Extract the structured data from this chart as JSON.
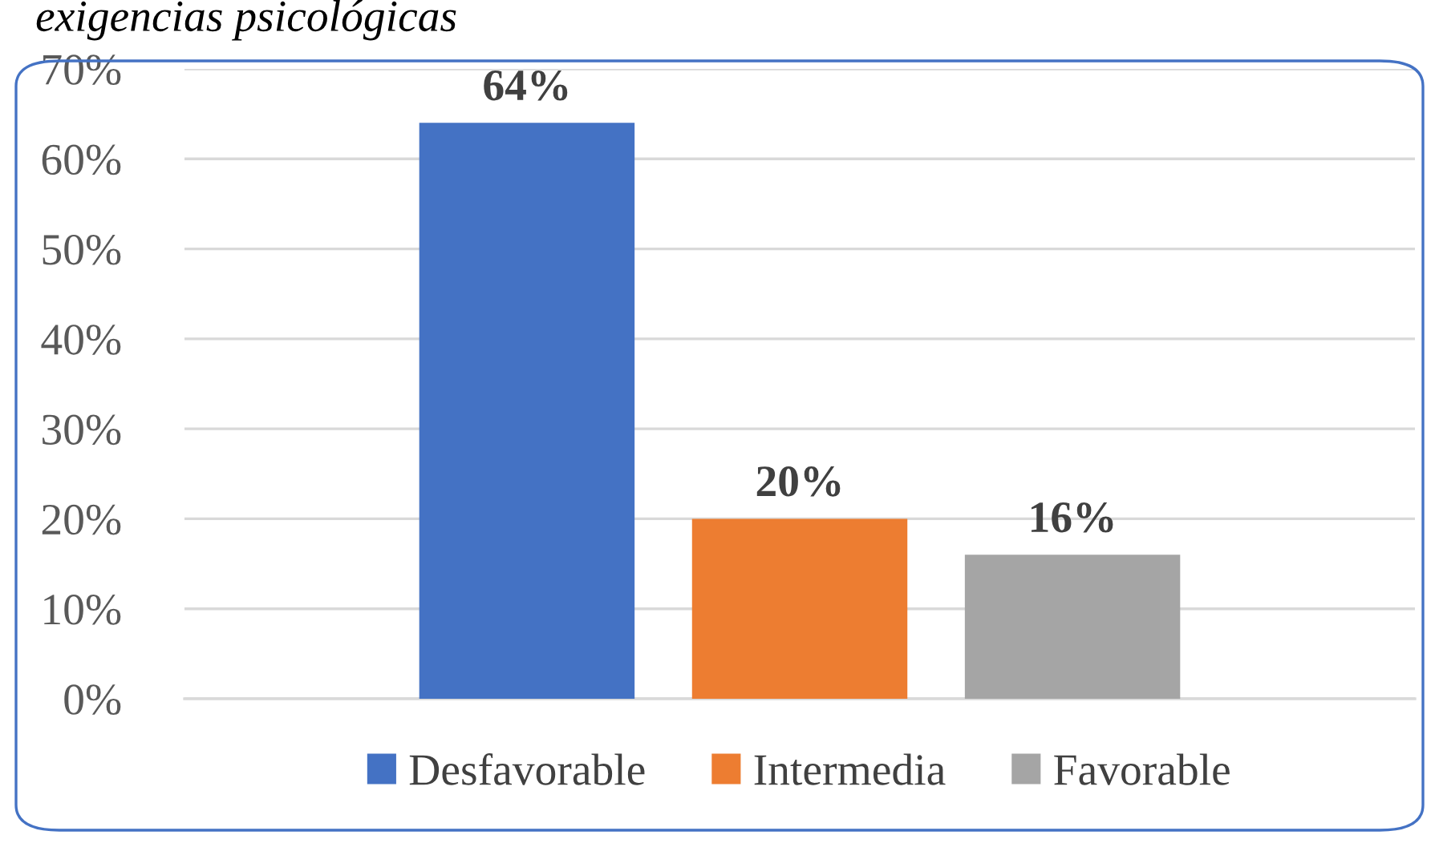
{
  "chart_data": {
    "type": "bar",
    "title": "exigencias psicológicas",
    "categories": [
      null
    ],
    "series": [
      {
        "name": "Desfavorable",
        "color": "#4472c4",
        "values": [
          64
        ]
      },
      {
        "name": "Intermedia",
        "color": "#ed7d31",
        "values": [
          20
        ]
      },
      {
        "name": "Favorable",
        "color": "#a5a5a5",
        "values": [
          16
        ]
      }
    ],
    "value_labels": [
      "64%",
      "20%",
      "16%"
    ],
    "ylim": [
      0,
      70
    ],
    "yticks": [
      {
        "value": 0,
        "label": "0%"
      },
      {
        "value": 10,
        "label": "10%"
      },
      {
        "value": 20,
        "label": "20%"
      },
      {
        "value": 30,
        "label": "30%"
      },
      {
        "value": 40,
        "label": "40%"
      },
      {
        "value": 50,
        "label": "50%"
      },
      {
        "value": 60,
        "label": "60%"
      },
      {
        "value": 70,
        "label": "70%"
      }
    ],
    "grid": "y",
    "legend": "bottom"
  }
}
